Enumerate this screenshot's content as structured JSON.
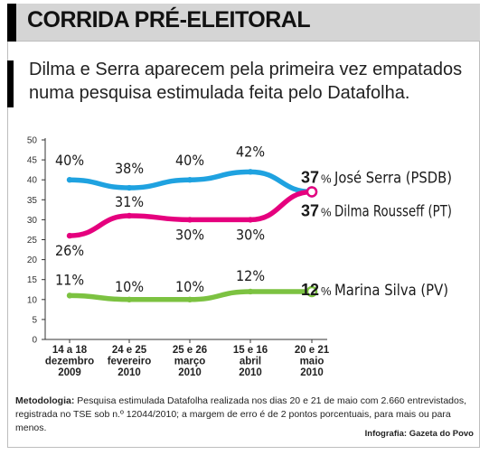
{
  "header": {
    "title": "CORRIDA PRÉ-ELEITORAL",
    "subtitle": "Dilma e Serra aparecem pela primeira vez empatados numa pesquisa estimulada feita pelo Datafolha."
  },
  "chart_data": {
    "type": "line",
    "categories": [
      [
        "14 a 18",
        "dezembro",
        "2009"
      ],
      [
        "24 e 25",
        "fevereiro",
        "2010"
      ],
      [
        "25 e 26",
        "março",
        "2010"
      ],
      [
        "15 e 16",
        "abril",
        "2010"
      ],
      [
        "20 e 21",
        "maio",
        "2010"
      ]
    ],
    "ylim": [
      0,
      50
    ],
    "yticks": [
      0,
      5,
      10,
      15,
      20,
      25,
      30,
      35,
      40,
      45,
      50
    ],
    "grid": false,
    "series": [
      {
        "name": "José Serra (PSDB)",
        "values": [
          40,
          38,
          40,
          42,
          37
        ],
        "labels": [
          "40%",
          "38%",
          "40%",
          "42%",
          "37%"
        ],
        "color": "#1fa2e0",
        "label_side": "above"
      },
      {
        "name": "Dilma Rousseff (PT)",
        "values": [
          26,
          31,
          30,
          30,
          37
        ],
        "labels": [
          "26%",
          "31%",
          "30%",
          "30%",
          "37%"
        ],
        "color": "#e5007e",
        "label_side": "below_first_then_below"
      },
      {
        "name": "Marina Silva (PV)",
        "values": [
          11,
          10,
          10,
          12,
          12
        ],
        "labels": [
          "11%",
          "10%",
          "10%",
          "12%",
          "12%"
        ],
        "color": "#7cc241",
        "label_side": "above"
      }
    ]
  },
  "footer": {
    "method_label": "Metodologia:",
    "method_text": " Pesquisa estimulada Datafolha realizada nos dias 20 e 21 de maio com 2.660 entrevistados, registrada no TSE sob n.º 12044/2010; a margem de erro é de 2 pontos porcentuais, para mais ou para menos.",
    "credit": "Infografia: Gazeta do Povo"
  }
}
